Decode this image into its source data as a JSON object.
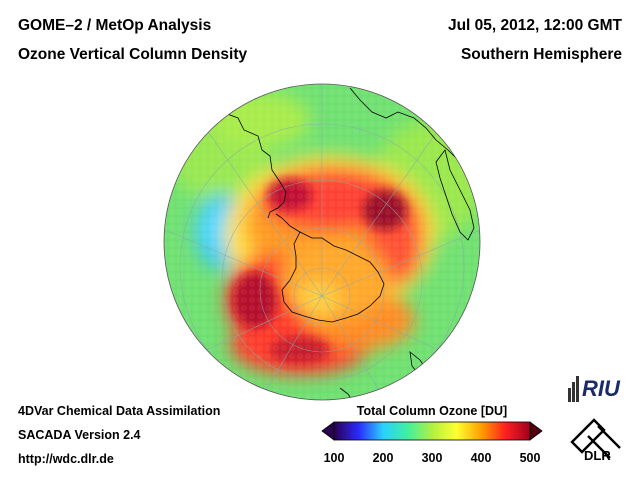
{
  "header": {
    "title_line1": "GOME–2 / MetOp Analysis",
    "title_line2": "Ozone Vertical Column Density",
    "date": "Jul 05, 2012, 12:00 GMT",
    "region": "Southern Hemisphere"
  },
  "footer": {
    "line1": "4DVar Chemical Data Assimilation",
    "line2": "SACADA Version 2.4",
    "line3": "http://wdc.dlr.de"
  },
  "colorbar": {
    "title": "Total Column Ozone [DU]",
    "ticks": [
      "100",
      "200",
      "300",
      "400",
      "500"
    ],
    "min": 100,
    "max": 500,
    "colors": [
      "#2a0050",
      "#2a2aff",
      "#2ad0ff",
      "#40f0a0",
      "#b0f040",
      "#ffff30",
      "#ffa000",
      "#ff2020",
      "#a00020"
    ]
  },
  "logos": {
    "riu": "RIU",
    "dlr": "DLR"
  }
}
